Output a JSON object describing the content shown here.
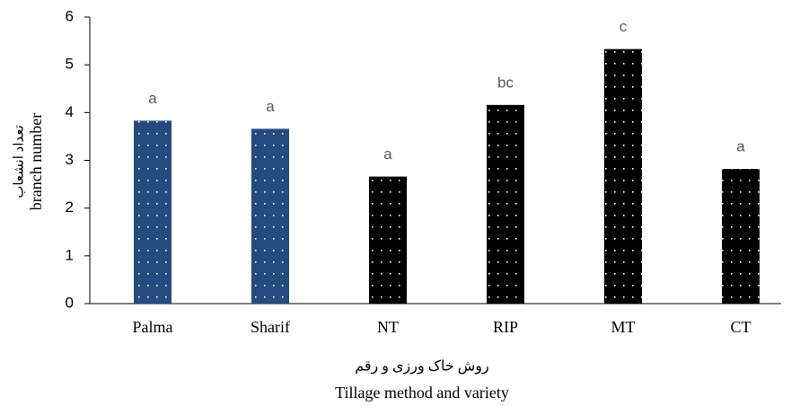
{
  "chart_data": {
    "type": "bar",
    "ylabel": [
      "تعداد انشعاب",
      "branch number"
    ],
    "xlabel": [
      "روش خاک ورزی و رقم",
      "Tillage method and variety"
    ],
    "categories": [
      "Palma",
      "Sharif",
      "NT",
      "RIP",
      "MT",
      "CT"
    ],
    "values": [
      3.83,
      3.66,
      2.66,
      4.16,
      5.33,
      2.82
    ],
    "annotations": [
      "a",
      "a",
      "a",
      "bc",
      "c",
      "a"
    ],
    "colors": [
      "#254a7d",
      "#254a7d",
      "#000000",
      "#000000",
      "#000000",
      "#000000"
    ],
    "ylim": [
      0,
      6
    ],
    "yticks": [
      0,
      1,
      2,
      3,
      4,
      5,
      6
    ],
    "grid": false
  }
}
